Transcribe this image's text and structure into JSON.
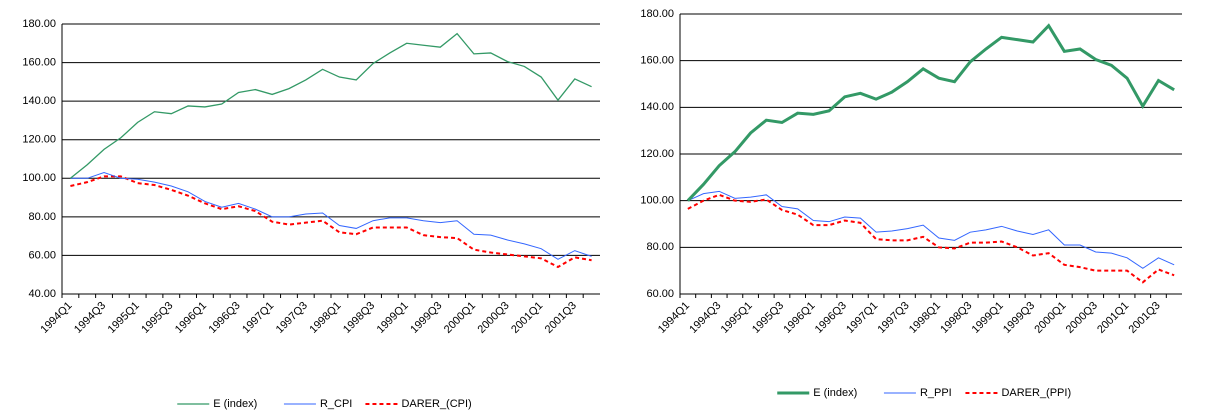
{
  "chart_data": [
    {
      "type": "line",
      "categories": [
        "1994Q1",
        null,
        "1994Q3",
        null,
        "1995Q1",
        null,
        "1995Q3",
        null,
        "1996Q1",
        null,
        "1996Q3",
        null,
        "1997Q1",
        null,
        "1997Q3",
        null,
        "1998Q1",
        null,
        "1998Q3",
        null,
        "1999Q1",
        null,
        "1999Q3",
        null,
        "2000Q1",
        null,
        "2000Q3",
        null,
        "2001Q1",
        null,
        "2001Q3",
        null
      ],
      "ylim": [
        40,
        180
      ],
      "yticks": [
        {
          "value": 40,
          "label": "40.00"
        },
        {
          "value": 60,
          "label": "60.00"
        },
        {
          "value": 80,
          "label": "80.00"
        },
        {
          "value": 100,
          "label": "100.00"
        },
        {
          "value": 120,
          "label": "120.00"
        },
        {
          "value": 140,
          "label": "140.00"
        },
        {
          "value": 160,
          "label": "160.00"
        },
        {
          "value": 180,
          "label": "180.00"
        }
      ],
      "grid": true,
      "legend": "bottom",
      "series": [
        {
          "name": "E (index)",
          "color": "#339966",
          "values": [
            100,
            107,
            115,
            121,
            129,
            134.5,
            133.5,
            137.5,
            137,
            138.5,
            144.5,
            146,
            143.5,
            146.5,
            151,
            156.5,
            152.5,
            151,
            159.5,
            165,
            170,
            169,
            168,
            175,
            164.5,
            165,
            160.5,
            158,
            152.5,
            140.5,
            151.5,
            147.5
          ]
        },
        {
          "name": "R_CPI",
          "color": "#3366ff",
          "values": [
            100,
            100,
            103,
            100,
            99.5,
            98,
            96,
            93,
            88,
            85,
            87,
            84,
            80,
            80,
            81.5,
            82,
            75.5,
            74,
            78,
            79.5,
            79.5,
            78,
            77,
            78,
            71,
            70.5,
            68,
            66,
            63.5,
            58,
            62.5,
            59.5
          ]
        },
        {
          "name": "DARER_(CPI)",
          "color": "#ff0000",
          "dashed": true,
          "values": [
            96,
            98,
            101,
            101,
            97.5,
            96.5,
            94,
            91,
            87,
            84,
            85.5,
            83,
            77.5,
            76,
            77,
            78,
            72,
            71,
            74.5,
            74.5,
            74.5,
            70.5,
            69.5,
            69,
            63,
            61.5,
            60.5,
            59.5,
            58.5,
            54,
            59,
            57.5
          ]
        }
      ]
    },
    {
      "type": "line",
      "categories": [
        "1994Q1",
        null,
        "1994Q3",
        null,
        "1995Q1",
        null,
        "1995Q3",
        null,
        "1996Q1",
        null,
        "1996Q3",
        null,
        "1997Q1",
        null,
        "1997Q3",
        null,
        "1998Q1",
        null,
        "1998Q3",
        null,
        "1999Q1",
        null,
        "1999Q3",
        null,
        "2000Q1",
        null,
        "2000Q3",
        null,
        "2001Q1",
        null,
        "2001Q3",
        null
      ],
      "ylim": [
        60,
        180
      ],
      "yticks": [
        {
          "value": 60,
          "label": "60.00"
        },
        {
          "value": 80,
          "label": "80.00"
        },
        {
          "value": 100,
          "label": "100.00"
        },
        {
          "value": 120,
          "label": "120.00"
        },
        {
          "value": 140,
          "label": "140.00"
        },
        {
          "value": 160,
          "label": "160.00"
        },
        {
          "value": 180,
          "label": "180.00"
        }
      ],
      "grid": true,
      "legend": "bottom",
      "series": [
        {
          "name": "E (index)",
          "color": "#339966",
          "values": [
            100,
            107,
            115,
            121,
            129,
            134.5,
            133.5,
            137.5,
            137,
            138.5,
            144.5,
            146,
            143.5,
            146.5,
            151,
            156.5,
            152.5,
            151,
            159.5,
            165,
            170,
            169,
            168,
            175,
            164,
            165,
            160.5,
            158,
            152.5,
            140.5,
            151.5,
            147.5
          ]
        },
        {
          "name": "R_PPI",
          "color": "#3366ff",
          "values": [
            100,
            103,
            104,
            101,
            101.5,
            102.5,
            97.5,
            96.5,
            91.5,
            91,
            93,
            92.5,
            86.5,
            87,
            88,
            89.5,
            84,
            83,
            86.5,
            87.5,
            89,
            87,
            85.5,
            87.5,
            81,
            81,
            78,
            77.5,
            75.5,
            71,
            75.5,
            72.5
          ]
        },
        {
          "name": "DARER_(PPI)",
          "color": "#ff0000",
          "dashed": true,
          "values": [
            96.5,
            100,
            102.5,
            100,
            99.5,
            100.5,
            96,
            94,
            89.5,
            89.5,
            91.5,
            90.5,
            83.5,
            83,
            83,
            84.5,
            80,
            79.5,
            82,
            82,
            82.5,
            80,
            76.5,
            77.5,
            72.5,
            71.5,
            70,
            70,
            70,
            65,
            70.5,
            68
          ]
        }
      ]
    }
  ]
}
